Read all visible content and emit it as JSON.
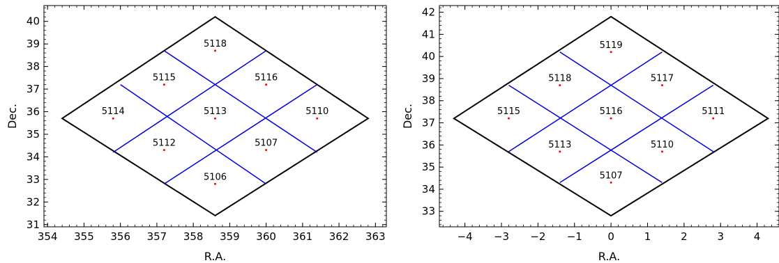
{
  "chart_data": [
    {
      "type": "scatter",
      "xlabel": "R.A.",
      "ylabel": "Dec.",
      "xlim": [
        353.9,
        363.3
      ],
      "ylim": [
        30.9,
        40.7
      ],
      "xticks": [
        354,
        355,
        356,
        357,
        358,
        359,
        360,
        361,
        362,
        363
      ],
      "xtick_labels": [
        "354",
        "355",
        "356",
        "357",
        "358",
        "359",
        "360",
        "361",
        "362",
        "363"
      ],
      "yticks": [
        31,
        32,
        33,
        34,
        35,
        36,
        37,
        38,
        39,
        40
      ],
      "ytick_labels": [
        "31",
        "32",
        "33",
        "34",
        "35",
        "36",
        "37",
        "38",
        "39",
        "40"
      ],
      "outline": [
        [
          358.6,
          40.2
        ],
        [
          362.8,
          35.7
        ],
        [
          358.6,
          31.4
        ],
        [
          354.4,
          35.7
        ]
      ],
      "inner_lines": [
        [
          [
            357.2,
            38.7
          ],
          [
            361.4,
            34.2
          ]
        ],
        [
          [
            356.0,
            37.2
          ],
          [
            360.0,
            32.8
          ]
        ],
        [
          [
            360.0,
            38.7
          ],
          [
            355.8,
            34.2
          ]
        ],
        [
          [
            361.4,
            37.2
          ],
          [
            357.2,
            32.8
          ]
        ]
      ],
      "fields": [
        {
          "label": "5118",
          "x": 358.6,
          "y": 38.7
        },
        {
          "label": "5115",
          "x": 357.2,
          "y": 37.2
        },
        {
          "label": "5116",
          "x": 360.0,
          "y": 37.2
        },
        {
          "label": "5114",
          "x": 355.8,
          "y": 35.7
        },
        {
          "label": "5113",
          "x": 358.6,
          "y": 35.7
        },
        {
          "label": "5110",
          "x": 361.4,
          "y": 35.7
        },
        {
          "label": "5112",
          "x": 357.2,
          "y": 34.3
        },
        {
          "label": "5107",
          "x": 360.0,
          "y": 34.3
        },
        {
          "label": "5106",
          "x": 358.6,
          "y": 32.8
        }
      ],
      "colors": {
        "outline": "#000000",
        "grid_lines": "#0000dd",
        "points": "#ff0000"
      }
    },
    {
      "type": "scatter",
      "xlabel": "R.A.",
      "ylabel": "Dec.",
      "xlim": [
        -4.7,
        4.6
      ],
      "ylim": [
        32.3,
        42.3
      ],
      "xticks": [
        -4,
        -3,
        -2,
        -1,
        0,
        1,
        2,
        3,
        4
      ],
      "xtick_labels": [
        "−4",
        "−3",
        "−2",
        "−1",
        "0",
        "1",
        "2",
        "3",
        "4"
      ],
      "yticks": [
        33,
        34,
        35,
        36,
        37,
        38,
        39,
        40,
        41,
        42
      ],
      "ytick_labels": [
        "33",
        "34",
        "35",
        "36",
        "37",
        "38",
        "39",
        "40",
        "41",
        "42"
      ],
      "outline": [
        [
          0.0,
          41.8
        ],
        [
          4.3,
          37.2
        ],
        [
          0.0,
          32.8
        ],
        [
          -4.3,
          37.2
        ]
      ],
      "inner_lines": [
        [
          [
            -1.4,
            40.2
          ],
          [
            2.8,
            35.7
          ]
        ],
        [
          [
            -2.8,
            38.7
          ],
          [
            1.4,
            34.3
          ]
        ],
        [
          [
            1.4,
            40.2
          ],
          [
            -2.8,
            35.7
          ]
        ],
        [
          [
            2.8,
            38.7
          ],
          [
            -1.4,
            34.3
          ]
        ]
      ],
      "fields": [
        {
          "label": "5119",
          "x": 0.0,
          "y": 40.2
        },
        {
          "label": "5118",
          "x": -1.4,
          "y": 38.7
        },
        {
          "label": "5117",
          "x": 1.4,
          "y": 38.7
        },
        {
          "label": "5115",
          "x": -2.8,
          "y": 37.2
        },
        {
          "label": "5116",
          "x": 0.0,
          "y": 37.2
        },
        {
          "label": "5111",
          "x": 2.8,
          "y": 37.2
        },
        {
          "label": "5113",
          "x": -1.4,
          "y": 35.7
        },
        {
          "label": "5110",
          "x": 1.4,
          "y": 35.7
        },
        {
          "label": "5107",
          "x": 0.0,
          "y": 34.3
        }
      ],
      "colors": {
        "outline": "#000000",
        "grid_lines": "#0000dd",
        "points": "#ff0000"
      }
    }
  ]
}
